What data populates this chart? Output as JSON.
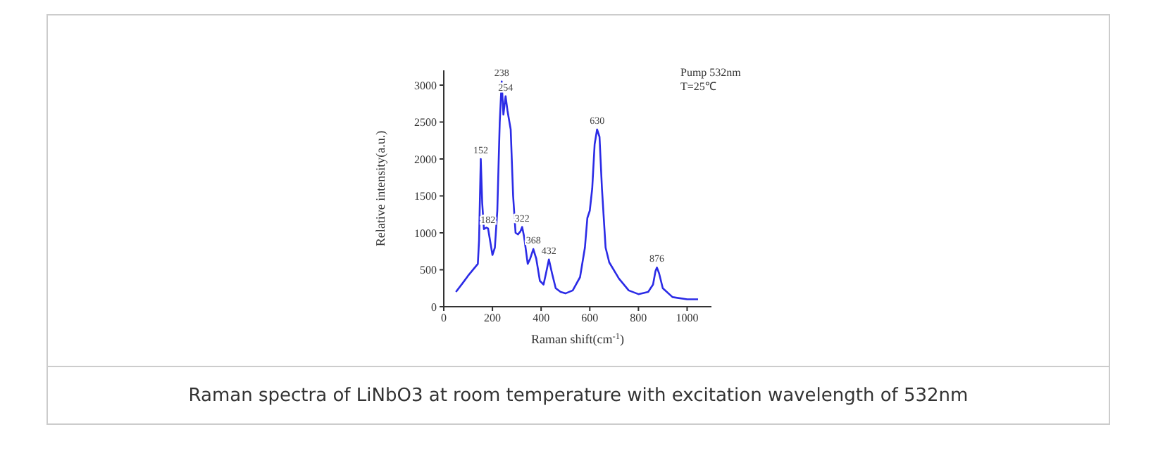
{
  "chart_data": {
    "type": "line",
    "xlabel": "Raman shift(cm$^{-1}$)",
    "ylabel": "Relative intensity(a.u.)",
    "x": [
      50,
      80,
      100,
      140,
      145,
      152,
      158,
      165,
      175,
      182,
      190,
      200,
      210,
      220,
      230,
      238,
      245,
      254,
      262,
      275,
      285,
      295,
      305,
      315,
      322,
      330,
      345,
      355,
      368,
      380,
      395,
      410,
      420,
      432,
      445,
      460,
      480,
      500,
      530,
      560,
      580,
      590,
      600,
      610,
      620,
      630,
      640,
      650,
      665,
      680,
      720,
      760,
      800,
      840,
      860,
      870,
      876,
      885,
      900,
      940,
      1000,
      1045
    ],
    "series": [
      {
        "color": "#2b2be6",
        "values": [
          200,
          330,
          420,
          580,
          900,
          2000,
          1400,
          1050,
          1070,
          1060,
          900,
          700,
          800,
          1300,
          2500,
          3050,
          2600,
          2850,
          2650,
          2400,
          1500,
          1000,
          980,
          1020,
          1080,
          950,
          580,
          650,
          780,
          650,
          350,
          300,
          450,
          640,
          450,
          250,
          200,
          180,
          220,
          400,
          800,
          1200,
          1300,
          1600,
          2200,
          2400,
          2300,
          1600,
          800,
          600,
          380,
          220,
          170,
          200,
          300,
          480,
          530,
          450,
          250,
          130,
          100,
          100
        ]
      }
    ],
    "xlim": [
      0,
      1100
    ],
    "xticks": [
      0,
      200,
      400,
      600,
      800,
      1000
    ],
    "ylim": [
      0,
      3200
    ],
    "yticks": [
      0,
      500,
      1000,
      1500,
      2000,
      2500,
      3000
    ],
    "marker": "none",
    "line_style": "solid",
    "annotations": [
      {
        "text": "152",
        "x": 152,
        "y": 2000
      },
      {
        "text": "182",
        "x": 182,
        "y": 1060
      },
      {
        "text": "238",
        "x": 238,
        "y": 3050
      },
      {
        "text": "254",
        "x": 254,
        "y": 2850
      },
      {
        "text": "322",
        "x": 322,
        "y": 1080
      },
      {
        "text": "368",
        "x": 368,
        "y": 780
      },
      {
        "text": "432",
        "x": 432,
        "y": 640
      },
      {
        "text": "630",
        "x": 630,
        "y": 2400
      },
      {
        "text": "876",
        "x": 876,
        "y": 530
      },
      "Pump 532nm",
      "T=25℃",
      "Raman spectra of LiNbO3 at room temperature with excitation wavelength of 532nm"
    ]
  }
}
